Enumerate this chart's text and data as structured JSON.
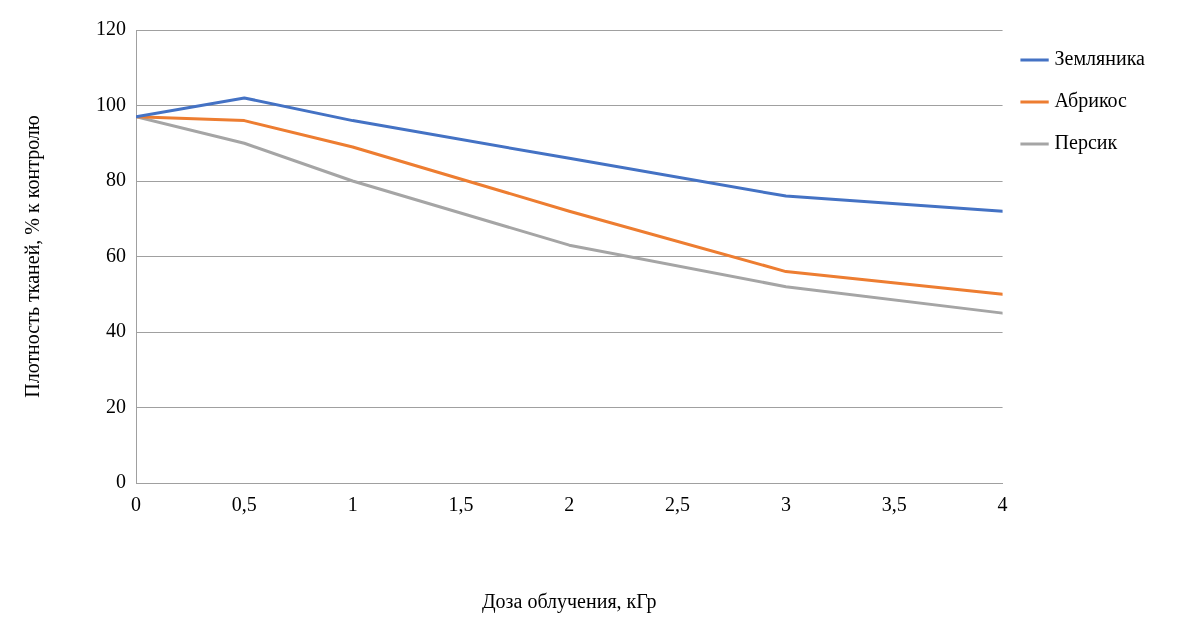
{
  "chart_data": {
    "type": "line",
    "xlabel": "Доза облучения, кГр",
    "ylabel": "Плотность тканей, % к контролю",
    "x": [
      0,
      0.5,
      1,
      2,
      3,
      4
    ],
    "series": [
      {
        "name": "Земляника",
        "color": "#4472c4",
        "values": [
          97,
          102,
          96,
          86,
          76,
          72
        ]
      },
      {
        "name": "Абрикос",
        "color": "#ed7d31",
        "values": [
          97,
          96,
          89,
          72,
          56,
          50
        ]
      },
      {
        "name": "Персик",
        "color": "#a5a5a5",
        "values": [
          97,
          90,
          80,
          63,
          52,
          45
        ]
      }
    ],
    "xlim": [
      0,
      4
    ],
    "xticks": [
      0,
      {
        "value": 0.5,
        "label": "0,5"
      },
      1,
      {
        "value": 1.5,
        "label": "1,5"
      },
      2,
      {
        "value": 2.5,
        "label": "2,5"
      },
      3,
      {
        "value": 3.5,
        "label": "3,5"
      },
      4
    ],
    "ylim": [
      0,
      120
    ],
    "yticks": [
      0,
      20,
      40,
      60,
      80,
      100,
      120
    ],
    "grid": "y",
    "legend": "right",
    "marker": "none",
    "line_style": "solid"
  }
}
